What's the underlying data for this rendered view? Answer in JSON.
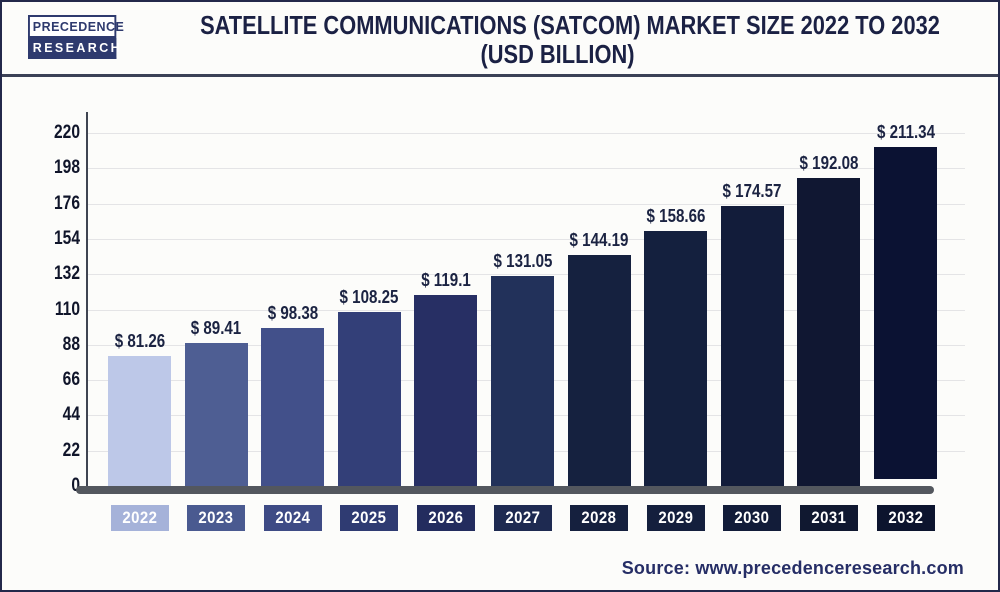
{
  "logo": {
    "line1": "PRECEDENCE",
    "line2": "RESEARCH"
  },
  "header": {
    "title_line1": "SATELLITE COMMUNICATIONS (SATCOM) MARKET SIZE 2022 TO 2032",
    "title_line2": "(USD BILLION)"
  },
  "source": {
    "label": "Source: www.precedenceresearch.com"
  },
  "chart_data": {
    "type": "bar",
    "title": "Satellite Communications (SATCOM) Market Size 2022 to 2032 (USD Billion)",
    "xlabel": "",
    "ylabel": "",
    "categories": [
      "2022",
      "2023",
      "2024",
      "2025",
      "2026",
      "2027",
      "2028",
      "2029",
      "2030",
      "2031",
      "2032"
    ],
    "values": [
      81.26,
      89.41,
      98.38,
      108.25,
      119.1,
      131.05,
      144.19,
      158.66,
      174.57,
      192.08,
      211.34
    ],
    "value_labels": [
      "$ 81.26",
      "$ 89.41",
      "$ 98.38",
      "$ 108.25",
      "$ 119.1",
      "$ 131.05",
      "$ 144.19",
      "$ 158.66",
      "$ 174.57",
      "$ 192.08",
      "$ 211.34"
    ],
    "ylim": [
      0,
      220
    ],
    "yticks": [
      0,
      22,
      44,
      66,
      88,
      110,
      132,
      154,
      176,
      198,
      220
    ],
    "grid": "horizontal-light",
    "legend": "none",
    "bar_colors": [
      "#bdc8e8",
      "#4e5e93",
      "#42508a",
      "#333f78",
      "#272f64",
      "#22315a",
      "#15213f",
      "#14203e",
      "#121c3a",
      "#101732",
      "#0b1233"
    ],
    "year_box_colors": [
      "#a5b2d9",
      "#4a5a90",
      "#3e4b85",
      "#2f3b72",
      "#232c5e",
      "#1e2a51",
      "#15203e",
      "#141f3d",
      "#121c39",
      "#101830",
      "#0c142e"
    ]
  },
  "colors": {
    "background": "#fcfcfa",
    "title_text": "#1b2144",
    "tick_text": "#10152a",
    "value_text": "#1b2342",
    "gridline": "#e4e4e6",
    "axis_line": "#3f4451",
    "x_axis_bar": "#53575e",
    "source_text": "#262e66",
    "logo_navy": "#2e3a6e"
  }
}
